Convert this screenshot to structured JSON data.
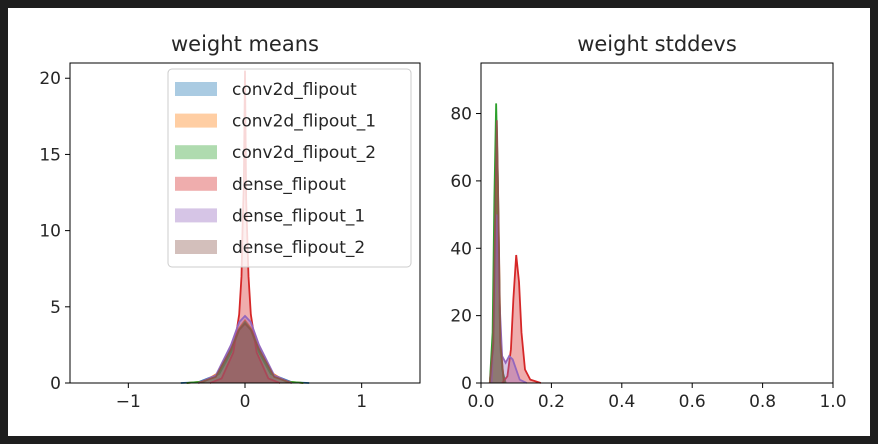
{
  "chart_data": [
    {
      "type": "area",
      "title": "weight means",
      "xlim": [
        -1.5,
        1.5
      ],
      "ylim": [
        0,
        21
      ],
      "xticks": [
        -1,
        0,
        1
      ],
      "xtick_labels": [
        "−1",
        "0",
        "1"
      ],
      "yticks": [
        0,
        5,
        10,
        15,
        20
      ],
      "ytick_labels": [
        "0",
        "5",
        "10",
        "15",
        "20"
      ],
      "legend_position": "upper right",
      "series": [
        {
          "name": "conv2d_flipout",
          "color": "#1f77b4",
          "x": [
            -0.55,
            -0.4,
            -0.25,
            -0.15,
            -0.08,
            0,
            0.08,
            0.15,
            0.25,
            0.4,
            0.55
          ],
          "y": [
            0,
            0.05,
            0.5,
            1.8,
            3.2,
            3.9,
            3.2,
            1.8,
            0.5,
            0.05,
            0
          ]
        },
        {
          "name": "conv2d_flipout_1",
          "color": "#ff7f0e",
          "x": [
            -0.5,
            -0.35,
            -0.22,
            -0.12,
            -0.05,
            0,
            0.05,
            0.12,
            0.22,
            0.35,
            0.5
          ],
          "y": [
            0,
            0.1,
            0.7,
            2.2,
            3.6,
            4.1,
            3.6,
            2.2,
            0.7,
            0.1,
            0
          ]
        },
        {
          "name": "conv2d_flipout_2",
          "color": "#2ca02c",
          "x": [
            -0.5,
            -0.35,
            -0.22,
            -0.12,
            -0.05,
            0,
            0.05,
            0.12,
            0.22,
            0.35,
            0.5
          ],
          "y": [
            0,
            0.1,
            0.6,
            2.0,
            3.5,
            4.0,
            3.5,
            2.0,
            0.6,
            0.1,
            0
          ]
        },
        {
          "name": "dense_flipout",
          "color": "#d62728",
          "x": [
            -0.3,
            -0.2,
            -0.1,
            -0.05,
            -0.03,
            -0.02,
            -0.01,
            0,
            0.01,
            0.02,
            0.03,
            0.05,
            0.1,
            0.2,
            0.3
          ],
          "y": [
            0,
            0.3,
            2.0,
            4.5,
            7.0,
            10.5,
            13.0,
            20.5,
            12.0,
            9.5,
            7.0,
            4.5,
            2.0,
            0.3,
            0
          ]
        },
        {
          "name": "dense_flipout_1",
          "color": "#9467bd",
          "x": [
            -0.4,
            -0.25,
            -0.12,
            -0.05,
            0,
            0.05,
            0.12,
            0.25,
            0.4
          ],
          "y": [
            0,
            0.5,
            2.5,
            4.0,
            4.4,
            4.0,
            2.5,
            0.5,
            0
          ]
        },
        {
          "name": "dense_flipout_2",
          "color": "#8c564b",
          "x": [
            -0.4,
            -0.25,
            -0.12,
            -0.05,
            0,
            0.05,
            0.12,
            0.25,
            0.4
          ],
          "y": [
            0,
            0.4,
            2.2,
            3.5,
            3.9,
            3.5,
            2.2,
            0.4,
            0
          ]
        }
      ]
    },
    {
      "type": "area",
      "title": "weight stddevs",
      "xlim": [
        0,
        1
      ],
      "ylim": [
        0,
        95
      ],
      "xticks": [
        0,
        0.2,
        0.4,
        0.6,
        0.8,
        1.0
      ],
      "xtick_labels": [
        "0.0",
        "0.2",
        "0.4",
        "0.6",
        "0.8",
        "1.0"
      ],
      "yticks": [
        0,
        20,
        40,
        60,
        80
      ],
      "ytick_labels": [
        "0",
        "20",
        "40",
        "60",
        "80"
      ],
      "series": [
        {
          "name": "conv2d_flipout",
          "color": "#1f77b4",
          "x": [
            0.025,
            0.035,
            0.04,
            0.045,
            0.05,
            0.055,
            0.065
          ],
          "y": [
            0,
            10,
            40,
            62,
            40,
            10,
            0
          ]
        },
        {
          "name": "conv2d_flipout_1",
          "color": "#ff7f0e",
          "x": [
            0.025,
            0.035,
            0.04,
            0.045,
            0.05,
            0.055,
            0.065
          ],
          "y": [
            0,
            12,
            45,
            70,
            45,
            12,
            0
          ]
        },
        {
          "name": "conv2d_flipout_2",
          "color": "#2ca02c",
          "x": [
            0.025,
            0.033,
            0.038,
            0.043,
            0.048,
            0.053,
            0.06,
            0.07
          ],
          "y": [
            0,
            15,
            55,
            83,
            60,
            20,
            4,
            0
          ]
        },
        {
          "name": "dense_flipout",
          "color": "#d62728",
          "x": [
            0.06,
            0.075,
            0.085,
            0.092,
            0.1,
            0.108,
            0.115,
            0.125,
            0.14,
            0.17
          ],
          "y": [
            0,
            2,
            10,
            25,
            38,
            30,
            15,
            4,
            1,
            0
          ]
        },
        {
          "name": "dense_flipout_1",
          "color": "#9467bd",
          "x": [
            0.03,
            0.038,
            0.045,
            0.05,
            0.06,
            0.07,
            0.08,
            0.09,
            0.1,
            0.11,
            0.13
          ],
          "y": [
            0,
            20,
            50,
            30,
            8,
            6,
            8,
            7,
            4,
            1,
            0
          ]
        },
        {
          "name": "dense_flipout_2",
          "color": "#8c564b",
          "x": [
            0.025,
            0.035,
            0.04,
            0.045,
            0.05,
            0.055,
            0.065
          ],
          "y": [
            0,
            12,
            48,
            78,
            48,
            12,
            0
          ]
        }
      ]
    }
  ]
}
